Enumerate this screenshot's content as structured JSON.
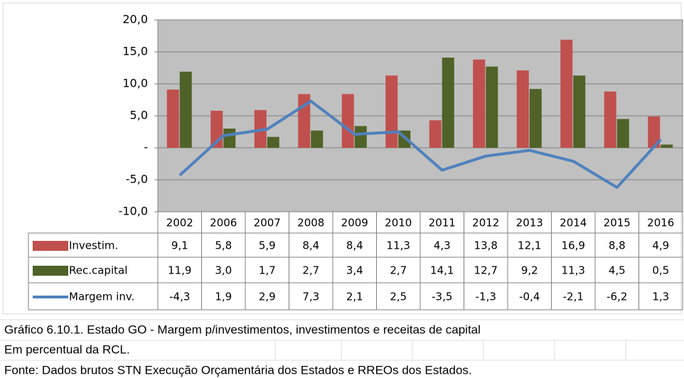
{
  "chart_data": {
    "type": "bar",
    "categories": [
      "2002",
      "2006",
      "2007",
      "2008",
      "2009",
      "2010",
      "2011",
      "2012",
      "2013",
      "2014",
      "2015",
      "2016"
    ],
    "series": [
      {
        "name": "Investim.",
        "type": "bar",
        "color": "#c0504d",
        "values": [
          9.1,
          5.8,
          5.9,
          8.4,
          8.4,
          11.3,
          4.3,
          13.8,
          12.1,
          16.9,
          8.8,
          4.9
        ],
        "value_labels": [
          "9,1",
          "5,8",
          "5,9",
          "8,4",
          "8,4",
          "11,3",
          "4,3",
          "13,8",
          "12,1",
          "16,9",
          "8,8",
          "4,9"
        ]
      },
      {
        "name": "Rec.capital",
        "type": "bar",
        "color": "#4f6228",
        "values": [
          11.9,
          3.0,
          1.7,
          2.7,
          3.4,
          2.7,
          14.1,
          12.7,
          9.2,
          11.3,
          4.5,
          0.5
        ],
        "value_labels": [
          "11,9",
          "3,0",
          "1,7",
          "2,7",
          "3,4",
          "2,7",
          "14,1",
          "12,7",
          "9,2",
          "11,3",
          "4,5",
          "0,5"
        ]
      },
      {
        "name": "Margem inv.",
        "type": "line",
        "color": "#4f81bd",
        "values": [
          -4.3,
          1.9,
          2.9,
          7.3,
          2.1,
          2.5,
          -3.5,
          -1.3,
          -0.4,
          -2.1,
          -6.2,
          1.3
        ],
        "value_labels": [
          "-4,3",
          "1,9",
          "2,9",
          "7,3",
          "2,1",
          "2,5",
          "-3,5",
          "-1,3",
          "-0,4",
          "-2,1",
          "-6,2",
          "1,3"
        ]
      }
    ],
    "ylim": [
      -10,
      20
    ],
    "yticks": [
      {
        "value": -10,
        "label": "-10,0"
      },
      {
        "value": -5,
        "label": "-5,0"
      },
      {
        "value": 0,
        "label": "-"
      },
      {
        "value": 5,
        "label": "5,0"
      },
      {
        "value": 10,
        "label": "10,0"
      },
      {
        "value": 15,
        "label": "15,0"
      },
      {
        "value": 20,
        "label": "20,0"
      }
    ],
    "grid": true,
    "plot_background": "#c0c0c0"
  },
  "captions": [
    "Gráfico 6.10.1. Estado GO - Margem p/investimentos, investimentos e receitas de capital",
    "Em percentual da RCL.",
    "Fonte: Dados brutos STN Execução Orçamentária dos Estados e RREOs dos Estados."
  ]
}
